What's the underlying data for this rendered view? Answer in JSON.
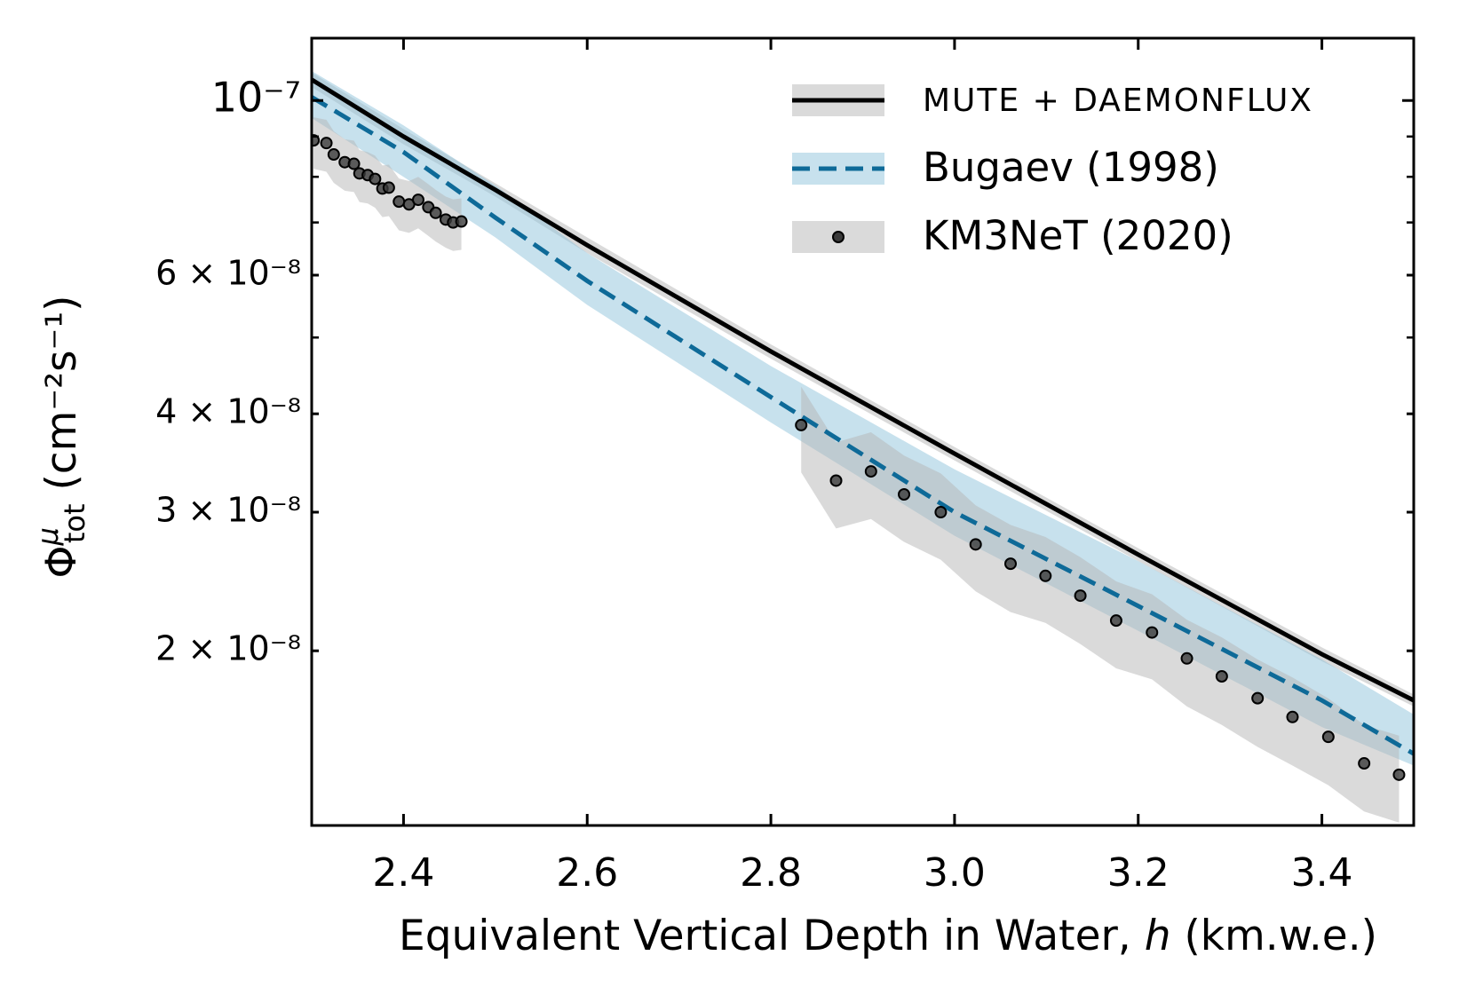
{
  "chart_data": {
    "type": "line",
    "xlabel": [
      "Equivalent Vertical Depth in Water, ",
      "h",
      " (km.w.e.)"
    ],
    "ylabel": {
      "symbol": "Φ",
      "superscript": "μ",
      "subscript": "tot",
      "unit": " (cm⁻²s⁻¹)"
    },
    "xlim": [
      2.3,
      3.5
    ],
    "ylim": [
      1.2e-08,
      1.2e-07
    ],
    "ylog": true,
    "xticks": [
      2.4,
      2.6,
      2.8,
      {
        "value": 3,
        "label": "3.0"
      },
      3.2,
      3.4
    ],
    "yticks": [
      {
        "value": 2e-08,
        "label": "2 × 10⁻⁸"
      },
      {
        "value": 3e-08,
        "label": "3 × 10⁻⁸"
      },
      {
        "value": 4e-08,
        "label": "4 × 10⁻⁸"
      },
      {
        "value": 6e-08,
        "label": "6 × 10⁻⁸"
      },
      {
        "value": 1e-07,
        "label": "10⁻⁷"
      }
    ],
    "yminor_ticks": [
      5e-08,
      7e-08,
      8e-08,
      9e-08
    ],
    "legend": "upper right",
    "series": [
      {
        "name": "MUTE + DAEMONFLUX",
        "style": "solid",
        "color": "#000000",
        "band_color": "#b5b5b5",
        "x": [
          2.3,
          2.4,
          2.5,
          2.6,
          2.8,
          3.0,
          3.2,
          3.4,
          3.5
        ],
        "values": [
          1.063e-07,
          9e-08,
          7.7e-08,
          6.55e-08,
          4.8e-08,
          3.56e-08,
          2.65e-08,
          1.98e-08,
          1.73e-08
        ],
        "upper": [
          1.085e-07,
          9.2e-08,
          7.85e-08,
          6.7e-08,
          4.9e-08,
          3.63e-08,
          2.7e-08,
          2.02e-08,
          1.76e-08
        ],
        "lower": [
          1.04e-07,
          8.8e-08,
          7.55e-08,
          6.4e-08,
          4.7e-08,
          3.49e-08,
          2.6e-08,
          1.94e-08,
          1.7e-08
        ]
      },
      {
        "name": "Bugaev (1998)",
        "style": "dashed",
        "color": "#0e6a98",
        "band_color": "#8fc3dc",
        "x": [
          2.3,
          2.4,
          2.5,
          2.6,
          2.8,
          3.0,
          3.2,
          3.4,
          3.5
        ],
        "values": [
          1.01e-07,
          8.6e-08,
          7.1e-08,
          5.9e-08,
          4.2e-08,
          3e-08,
          2.28e-08,
          1.73e-08,
          1.48e-08
        ],
        "upper": [
          1.09e-07,
          9.3e-08,
          7.8e-08,
          6.4e-08,
          4.6e-08,
          3.4e-08,
          2.6e-08,
          1.95e-08,
          1.66e-08
        ],
        "lower": [
          9.5e-08,
          8e-08,
          6.7e-08,
          5.5e-08,
          3.9e-08,
          2.8e-08,
          2.12e-08,
          1.6e-08,
          1.43e-08
        ]
      },
      {
        "name": "KM3NeT (2020)",
        "style": "points",
        "color": "#3a3a3a",
        "band_color": "#b5b5b5",
        "x": [
          2.302,
          2.316,
          2.324,
          2.336,
          2.346,
          2.352,
          2.361,
          2.369,
          2.377,
          2.384,
          2.395,
          2.406,
          2.416,
          2.427,
          2.435,
          2.446,
          2.454,
          2.463,
          null,
          2.833,
          2.871,
          2.909,
          2.945,
          2.985,
          3.023,
          3.061,
          3.099,
          3.137,
          3.176,
          3.215,
          3.253,
          3.291,
          3.33,
          3.368,
          3.407,
          3.446,
          3.484
        ],
        "values": [
          8.9e-08,
          8.83e-08,
          8.54e-08,
          8.35e-08,
          8.31e-08,
          8.08e-08,
          8.04e-08,
          7.95e-08,
          7.73e-08,
          7.75e-08,
          7.44e-08,
          7.38e-08,
          7.48e-08,
          7.32e-08,
          7.2e-08,
          7.06e-08,
          7e-08,
          7.02e-08,
          null,
          3.87e-08,
          3.29e-08,
          3.38e-08,
          3.16e-08,
          3e-08,
          2.73e-08,
          2.58e-08,
          2.49e-08,
          2.35e-08,
          2.185e-08,
          2.11e-08,
          1.956e-08,
          1.856e-08,
          1.741e-08,
          1.648e-08,
          1.555e-08,
          1.439e-08,
          1.392e-08
        ],
        "upper": [
          9.52e-08,
          9.45e-08,
          9.14e-08,
          8.93e-08,
          8.89e-08,
          8.65e-08,
          8.6e-08,
          8.51e-08,
          8.27e-08,
          8.29e-08,
          7.96e-08,
          7.9e-08,
          8e-08,
          7.83e-08,
          7.7e-08,
          7.55e-08,
          7.49e-08,
          7.51e-08,
          null,
          4.33e-08,
          3.68e-08,
          3.79e-08,
          3.54e-08,
          3.36e-08,
          3.06e-08,
          2.89e-08,
          2.79e-08,
          2.63e-08,
          2.45e-08,
          2.36e-08,
          2.19e-08,
          2.08e-08,
          1.95e-08,
          1.85e-08,
          1.74e-08,
          1.61e-08,
          1.56e-08
        ],
        "lower": [
          8.19e-08,
          8.12e-08,
          7.86e-08,
          7.68e-08,
          7.65e-08,
          7.43e-08,
          7.4e-08,
          7.31e-08,
          7.11e-08,
          7.13e-08,
          6.84e-08,
          6.79e-08,
          6.88e-08,
          6.73e-08,
          6.62e-08,
          6.5e-08,
          6.44e-08,
          6.46e-08,
          null,
          3.37e-08,
          2.86e-08,
          2.94e-08,
          2.75e-08,
          2.61e-08,
          2.38e-08,
          2.24e-08,
          2.17e-08,
          2.04e-08,
          1.9e-08,
          1.84e-08,
          1.7e-08,
          1.61e-08,
          1.51e-08,
          1.43e-08,
          1.35e-08,
          1.25e-08,
          1.21e-08
        ]
      }
    ]
  }
}
